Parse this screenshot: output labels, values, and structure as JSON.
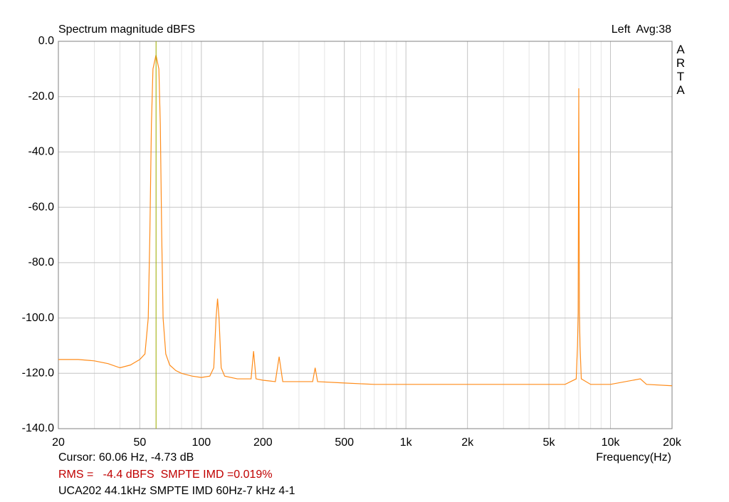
{
  "chart_data": {
    "type": "line",
    "title": "Spectrum magnitude dBFS",
    "channel_info": "Left  Avg:38",
    "brand": "ARTA",
    "x_label": "Frequency(Hz)",
    "cursor_text": "Cursor: 60.06 Hz, -4.73 dB",
    "rms_text": "RMS =   -4.4 dBFS  SMPTE IMD =0.019%",
    "device_text": "UCA202 44.1kHz SMPTE IMD 60Hz-7 kHz 4-1",
    "cursor_x": 60.06,
    "cursor_color": "#a0b000",
    "log_x": true,
    "grid": true,
    "color": "#ff8c1a",
    "xlim": [
      20,
      20000
    ],
    "ylim": [
      -140,
      0
    ],
    "xticks": [
      20,
      50,
      100,
      200,
      500,
      {
        "value": 1000,
        "label": "1k"
      },
      {
        "value": 2000,
        "label": "2k"
      },
      {
        "value": 5000,
        "label": "5k"
      },
      {
        "value": 10000,
        "label": "10k"
      },
      {
        "value": 20000,
        "label": "20k"
      }
    ],
    "x_minor_ticks": [
      30,
      40,
      60,
      70,
      80,
      90,
      300,
      400,
      600,
      700,
      800,
      900,
      3000,
      4000,
      6000,
      7000,
      8000,
      9000
    ],
    "yticks": [
      {
        "value": 0,
        "label": "0.0"
      },
      {
        "value": -20,
        "label": "-20.0"
      },
      {
        "value": -40,
        "label": "-40.0"
      },
      {
        "value": -60,
        "label": "-60.0"
      },
      {
        "value": -80,
        "label": "-80.0"
      },
      {
        "value": -100,
        "label": "-100.0"
      },
      {
        "value": -120,
        "label": "-120.0"
      },
      {
        "value": -140,
        "label": "-140.0"
      }
    ],
    "x": [
      20,
      25,
      30,
      35,
      40,
      45,
      50,
      53,
      55,
      56,
      57,
      58,
      60,
      62,
      63,
      64,
      65,
      67,
      70,
      75,
      80,
      90,
      100,
      110,
      115,
      118,
      120,
      122,
      125,
      130,
      150,
      175,
      180,
      185,
      200,
      230,
      240,
      250,
      300,
      350,
      360,
      370,
      500,
      700,
      1000,
      1500,
      2000,
      3000,
      4000,
      5000,
      6000,
      6800,
      6900,
      6950,
      7000,
      7050,
      7100,
      7200,
      8000,
      10000,
      14000,
      15000,
      20000
    ],
    "values": [
      -115,
      -115,
      -115.5,
      -116.5,
      -118,
      -117,
      -115,
      -113,
      -100,
      -70,
      -30,
      -10,
      -5,
      -10,
      -30,
      -70,
      -100,
      -113,
      -117,
      -119,
      -120,
      -121,
      -121.5,
      -121,
      -118,
      -100,
      -93,
      -100,
      -118,
      -121,
      -122,
      -122,
      -112,
      -122,
      -122.5,
      -123,
      -114,
      -123,
      -123,
      -123,
      -118,
      -123,
      -123.5,
      -124,
      -124,
      -124,
      -124,
      -124,
      -124,
      -124,
      -124,
      -122,
      -110,
      -98,
      -17,
      -98,
      -110,
      -122,
      -124,
      -124,
      -122,
      -124,
      -124.5
    ]
  }
}
